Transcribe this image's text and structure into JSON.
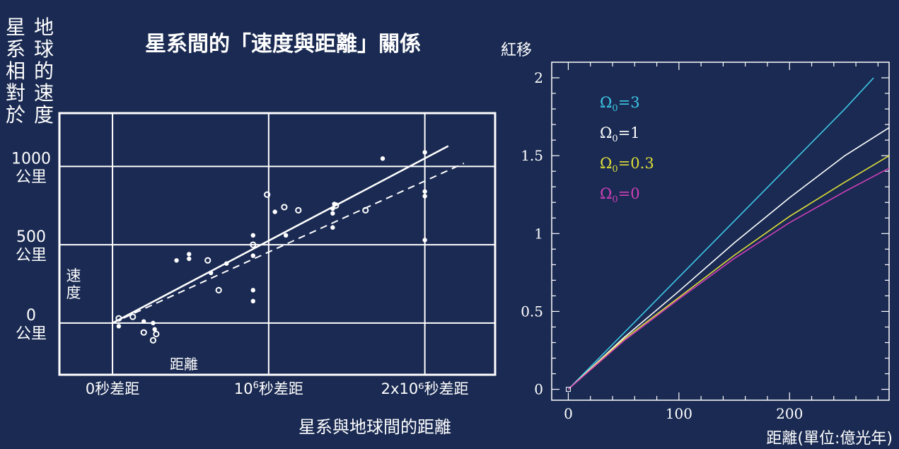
{
  "page": {
    "background": "#1a2a52",
    "frame_color": "#ffffff",
    "text_color": "#ffffff"
  },
  "chart_data": [
    {
      "type": "scatter",
      "title": "星系間的「速度與距離」關係",
      "ylabel_left": [
        "星",
        "系",
        "相",
        "對",
        "於"
      ],
      "ylabel_right": [
        "地",
        "球",
        "的",
        "速",
        "度"
      ],
      "inner_ylabel": "速度",
      "inner_xlabel": "距離",
      "xlabel": "星系與地球間的距離",
      "xticks": [
        {
          "value": 0,
          "label": "0秒差距"
        },
        {
          "value": 1,
          "label_base": "10",
          "label_sup": "6",
          "label_tail": "秒差距"
        },
        {
          "value": 2,
          "label": "2x10⁶秒差距"
        }
      ],
      "yticks": [
        {
          "value": 1000,
          "line1": "1000",
          "line2": "公里"
        },
        {
          "value": 500,
          "line1": "500",
          "line2": "公里"
        },
        {
          "value": 0,
          "line1": "0",
          "line2": "公里"
        }
      ],
      "xlim": [
        -0.34,
        2.45
      ],
      "ylim": [
        -330,
        1340
      ],
      "grid": true,
      "filled_points": [
        [
          0.04,
          -20
        ],
        [
          0.41,
          400
        ],
        [
          0.49,
          410
        ],
        [
          0.49,
          440
        ],
        [
          0.63,
          320
        ],
        [
          0.73,
          380
        ],
        [
          0.9,
          140
        ],
        [
          0.9,
          210
        ],
        [
          0.9,
          430
        ],
        [
          0.9,
          560
        ],
        [
          1.11,
          560
        ],
        [
          1.04,
          710
        ],
        [
          1.41,
          730
        ],
        [
          1.41,
          700
        ],
        [
          1.41,
          610
        ],
        [
          1.42,
          760
        ],
        [
          1.73,
          1050
        ],
        [
          2.0,
          1090
        ],
        [
          2.0,
          840
        ],
        [
          2.0,
          810
        ],
        [
          2.0,
          530
        ],
        [
          0.2,
          10
        ],
        [
          0.26,
          0
        ],
        [
          0.27,
          -40
        ]
      ],
      "open_points": [
        [
          0.04,
          30
        ],
        [
          0.13,
          40
        ],
        [
          0.2,
          -60
        ],
        [
          0.28,
          -70
        ],
        [
          0.26,
          -110
        ],
        [
          0.61,
          400
        ],
        [
          0.68,
          210
        ],
        [
          0.9,
          500
        ],
        [
          0.99,
          820
        ],
        [
          1.1,
          740
        ],
        [
          1.19,
          720
        ],
        [
          1.43,
          750
        ],
        [
          1.62,
          720
        ]
      ],
      "fit_solid": {
        "x": [
          0.0,
          2.15
        ],
        "y": [
          0,
          1130
        ]
      },
      "fit_dashed": {
        "x": [
          0.0,
          2.25
        ],
        "y": [
          0,
          1020
        ]
      }
    },
    {
      "type": "line",
      "ylabel": "紅移",
      "xlabel": "距離(單位:億光年)",
      "xlim": [
        -15,
        290
      ],
      "ylim": [
        -0.07,
        2.1
      ],
      "xticks": [
        0,
        100,
        200
      ],
      "xtick_labels": [
        "0",
        "100",
        "200"
      ],
      "yticks": [
        0,
        0.5,
        1,
        1.5,
        2
      ],
      "ytick_labels": [
        "0",
        "0.5",
        "1",
        "1.5",
        "2"
      ],
      "legend_placement": "top-left",
      "series": [
        {
          "name": "Ω",
          "sub": "0",
          "eq": "=3",
          "color": "#3fc8e6",
          "x": [
            0,
            50,
            100,
            150,
            200,
            250,
            276
          ],
          "y": [
            0,
            0.36,
            0.72,
            1.08,
            1.44,
            1.8,
            2.0
          ]
        },
        {
          "name": "Ω",
          "sub": "0",
          "eq": "=1",
          "color": "#ffffff",
          "x": [
            0,
            50,
            100,
            150,
            200,
            250,
            290
          ],
          "y": [
            0,
            0.33,
            0.63,
            0.94,
            1.23,
            1.5,
            1.68
          ]
        },
        {
          "name": "Ω",
          "sub": "0",
          "eq": "=0.3",
          "color": "#dede38",
          "x": [
            0,
            50,
            100,
            150,
            200,
            250,
            290
          ],
          "y": [
            0,
            0.32,
            0.59,
            0.86,
            1.11,
            1.33,
            1.5
          ]
        },
        {
          "name": "Ω",
          "sub": "0",
          "eq": "=0",
          "color": "#d040b8",
          "x": [
            0,
            50,
            100,
            150,
            200,
            250,
            290
          ],
          "y": [
            0,
            0.31,
            0.58,
            0.84,
            1.07,
            1.27,
            1.42
          ]
        }
      ],
      "origin_marker": [
        0,
        0
      ]
    }
  ]
}
